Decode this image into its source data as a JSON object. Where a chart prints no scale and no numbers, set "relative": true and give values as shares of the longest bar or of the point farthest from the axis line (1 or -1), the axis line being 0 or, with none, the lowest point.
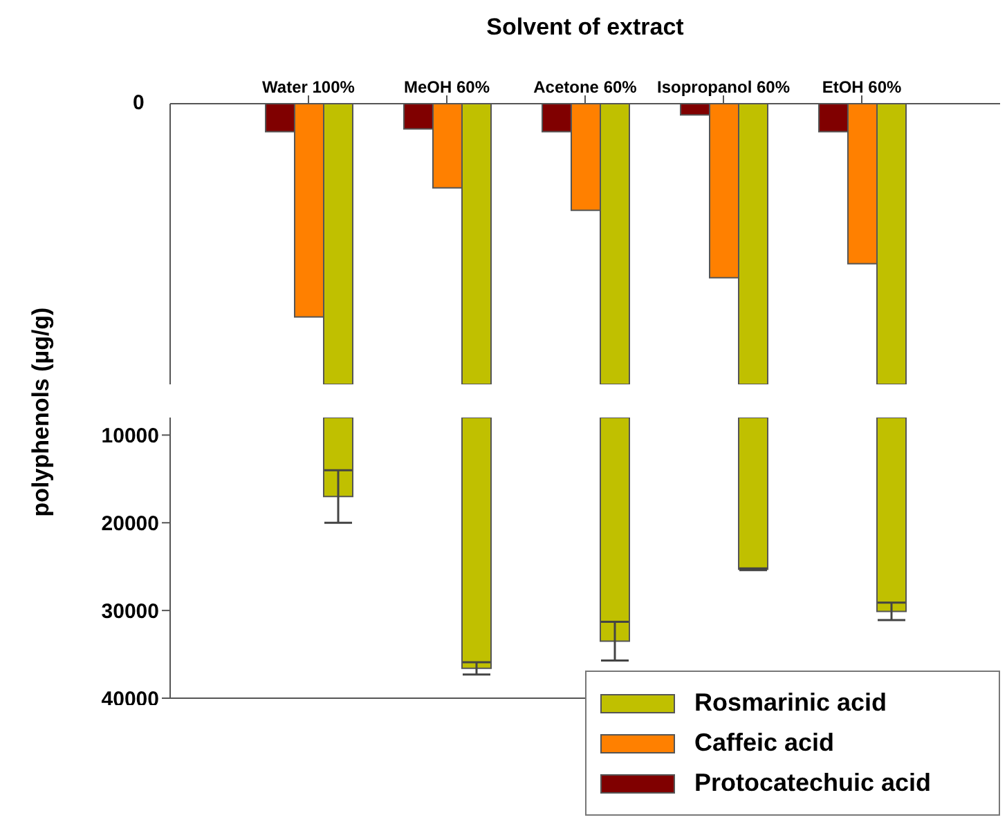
{
  "chart_data": [
    {
      "type": "bar",
      "xlabel": "Solvent of extract",
      "categories": [
        "Water 100%",
        "MeOH 60%",
        "Acetone 60%",
        "Isopropanol 60%",
        "EtOH 60%"
      ],
      "relative": true,
      "annotations": [
        "0"
      ],
      "tick_labels": "x",
      "legend": "bottom right",
      "series": [
        {
          "name": "Protocatechuic acid",
          "color": "#800000",
          "values": [
            -0.1,
            -0.09,
            -0.1,
            -0.04,
            -0.1
          ]
        },
        {
          "name": "Caffeic acid",
          "color": "#ff8000",
          "values": [
            -0.76,
            -0.3,
            -0.38,
            -0.62,
            -0.57
          ]
        },
        {
          "name": "Rosmarinic acid",
          "color": "#c0c000",
          "values": [
            -1,
            -1,
            -1,
            -1,
            -1
          ]
        }
      ]
    },
    {
      "type": "bar",
      "ylabel": "polyphenols (µg/g)",
      "categories": [
        null,
        null,
        null,
        null,
        null
      ],
      "ylim": [
        40000,
        8000
      ],
      "yticks": [
        10000,
        20000,
        30000,
        40000
      ],
      "tick_labels": "y",
      "series": [
        {
          "color": "#c0c000",
          "values": [
            17000,
            36600,
            33500,
            25300,
            30100
          ],
          "errors": [
            3000,
            700,
            2200,
            100,
            1000
          ]
        }
      ]
    }
  ]
}
